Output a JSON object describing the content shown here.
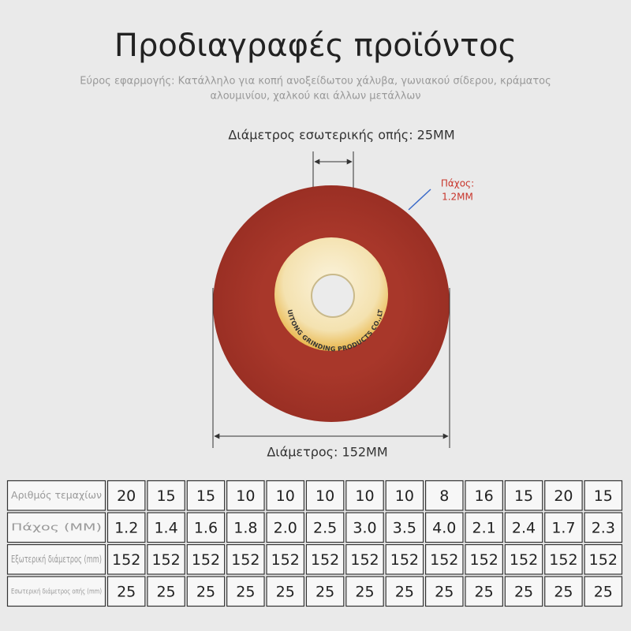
{
  "header": {
    "title": "Προδιαγραφές προϊόντος",
    "subtitle_lines": [
      "Εύρος εφαρμογής: Κατάλληλο για κοπή ανοξείδωτου χάλυβα, γωνιακού σίδερου, κράματος",
      "αλουμινίου, χαλκού και άλλων μετάλλων"
    ]
  },
  "diagram": {
    "inner_label": "Διάμετρος εσωτερικής οπής: 25MM",
    "thickness_label": [
      "Πάχος:",
      "1.2MM"
    ],
    "outer_label": "Διάμετρος: 152MM",
    "disc_text": "HUITONG GRINDING PRODUCTS CO.,LTD"
  },
  "table": {
    "rows": [
      [
        "Αριθμός τεμαχίων",
        "20",
        "15",
        "15",
        "10",
        "10",
        "10",
        "10",
        "10",
        "8",
        "16",
        "15",
        "20",
        "15"
      ],
      [
        "Πάχος (MM)",
        "1.2",
        "1.4",
        "1.6",
        "1.8",
        "2.0",
        "2.5",
        "3.0",
        "3.5",
        "4.0",
        "2.1",
        "2.4",
        "1.7",
        "2.3"
      ],
      [
        "Εξωτερική διάμετρος (mm)",
        "152",
        "152",
        "152",
        "152",
        "152",
        "152",
        "152",
        "152",
        "152",
        "152",
        "152",
        "152",
        "152"
      ],
      [
        "Εσωτερική διάμετρος οπής (mm)",
        "25",
        "25",
        "25",
        "25",
        "25",
        "25",
        "25",
        "25",
        "25",
        "25",
        "25",
        "25",
        "25"
      ]
    ]
  }
}
